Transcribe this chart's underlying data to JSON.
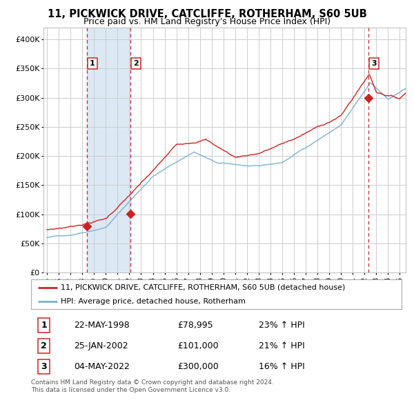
{
  "title": "11, PICKWICK DRIVE, CATCLIFFE, ROTHERHAM, S60 5UB",
  "subtitle": "Price paid vs. HM Land Registry's House Price Index (HPI)",
  "legend_line1": "11, PICKWICK DRIVE, CATCLIFFE, ROTHERHAM, S60 5UB (detached house)",
  "legend_line2": "HPI: Average price, detached house, Rotherham",
  "footer1": "Contains HM Land Registry data © Crown copyright and database right 2024.",
  "footer2": "This data is licensed under the Open Government Licence v3.0.",
  "sales": [
    {
      "label": "1",
      "date": "22-MAY-1998",
      "price": 78995,
      "hpi_pct": "23%",
      "x_year": 1998.38
    },
    {
      "label": "2",
      "date": "25-JAN-2002",
      "price": 101000,
      "hpi_pct": "21%",
      "x_year": 2002.07
    },
    {
      "label": "3",
      "date": "04-MAY-2022",
      "price": 300000,
      "hpi_pct": "16%",
      "x_year": 2022.34
    }
  ],
  "sale_prices": [
    78995,
    101000,
    300000
  ],
  "hpi_color": "#7aafd4",
  "price_color": "#cc2222",
  "dashed_color": "#cc2222",
  "shade_color": "#dce9f5",
  "background_color": "#ffffff",
  "grid_color": "#cccccc",
  "ylim": [
    0,
    420000
  ],
  "xlim_start": 1995,
  "xlim_end": 2025.5
}
